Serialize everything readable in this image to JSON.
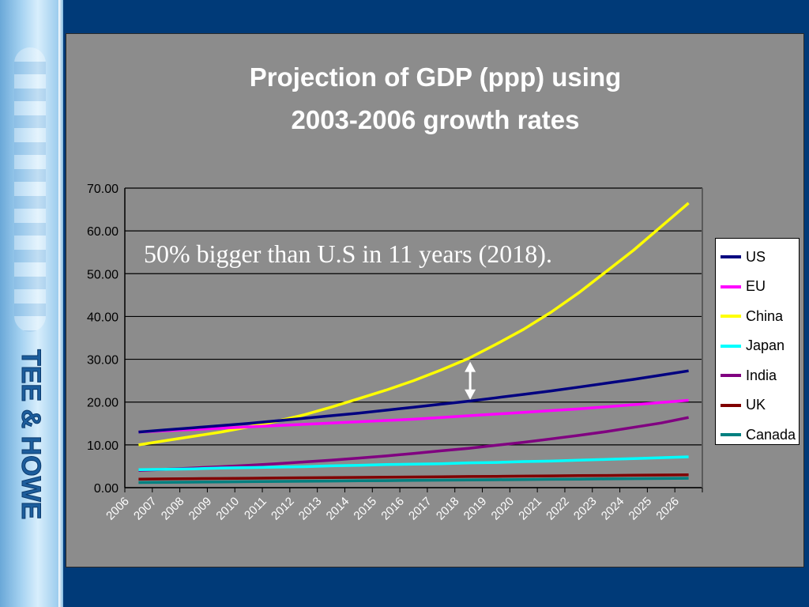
{
  "slide": {
    "sidebar_logo_text": "TEE & HOWE"
  },
  "chart_data": {
    "type": "line",
    "title_lines": [
      "Projection of GDP (ppp) using",
      "2003-2006 growth rates"
    ],
    "xlabel": "",
    "ylabel": "",
    "ylim": [
      0,
      70
    ],
    "yticks": [
      "0.00",
      "10.00",
      "20.00",
      "30.00",
      "40.00",
      "50.00",
      "60.00",
      "70.00"
    ],
    "categories": [
      "2006",
      "2007",
      "2008",
      "2009",
      "2010",
      "2011",
      "2012",
      "2013",
      "2014",
      "2015",
      "2016",
      "2017",
      "2018",
      "2019",
      "2020",
      "2021",
      "2022",
      "2023",
      "2024",
      "2025",
      "2026"
    ],
    "grid": true,
    "legend_position": "right",
    "annotation": "50% bigger than U.S in 11 years (2018).",
    "annotation_arrow_year": "2018",
    "annotation_arrow_range": [
      20,
      30
    ],
    "series": [
      {
        "name": "US",
        "color": "#000080",
        "values": [
          13.0,
          13.5,
          14.0,
          14.5,
          15.0,
          15.6,
          16.2,
          16.8,
          17.4,
          18.1,
          18.8,
          19.5,
          20.2,
          21.0,
          21.8,
          22.6,
          23.5,
          24.4,
          25.3,
          26.3,
          27.3
        ]
      },
      {
        "name": "EU",
        "color": "#ff00ff",
        "values": [
          13.0,
          13.3,
          13.6,
          13.9,
          14.2,
          14.5,
          14.8,
          15.1,
          15.4,
          15.7,
          16.0,
          16.4,
          16.8,
          17.2,
          17.6,
          18.0,
          18.4,
          18.9,
          19.4,
          19.9,
          20.4
        ]
      },
      {
        "name": "China",
        "color": "#ffff00",
        "values": [
          10.0,
          11.0,
          12.0,
          13.0,
          14.2,
          15.5,
          17.0,
          18.8,
          20.8,
          22.8,
          25.0,
          27.5,
          30.2,
          33.5,
          37.0,
          41.0,
          45.5,
          50.5,
          55.5,
          61.0,
          66.5
        ]
      },
      {
        "name": "Japan",
        "color": "#00ffff",
        "values": [
          4.2,
          4.3,
          4.4,
          4.6,
          4.7,
          4.8,
          4.9,
          5.1,
          5.2,
          5.4,
          5.5,
          5.6,
          5.8,
          5.9,
          6.1,
          6.2,
          6.4,
          6.6,
          6.8,
          7.0,
          7.2
        ]
      },
      {
        "name": "India",
        "color": "#800080",
        "values": [
          4.0,
          4.3,
          4.6,
          4.9,
          5.2,
          5.6,
          6.0,
          6.4,
          6.9,
          7.4,
          8.0,
          8.6,
          9.2,
          9.9,
          10.6,
          11.4,
          12.2,
          13.1,
          14.1,
          15.1,
          16.4
        ]
      },
      {
        "name": "UK",
        "color": "#800000",
        "values": [
          2.0,
          2.05,
          2.1,
          2.15,
          2.2,
          2.25,
          2.3,
          2.35,
          2.4,
          2.45,
          2.5,
          2.55,
          2.6,
          2.65,
          2.7,
          2.75,
          2.8,
          2.85,
          2.9,
          2.95,
          3.0
        ]
      },
      {
        "name": "Canada",
        "color": "#008080",
        "values": [
          1.2,
          1.25,
          1.3,
          1.35,
          1.4,
          1.45,
          1.5,
          1.55,
          1.6,
          1.65,
          1.7,
          1.75,
          1.8,
          1.85,
          1.9,
          1.95,
          2.0,
          2.05,
          2.1,
          2.15,
          2.2
        ]
      }
    ]
  }
}
